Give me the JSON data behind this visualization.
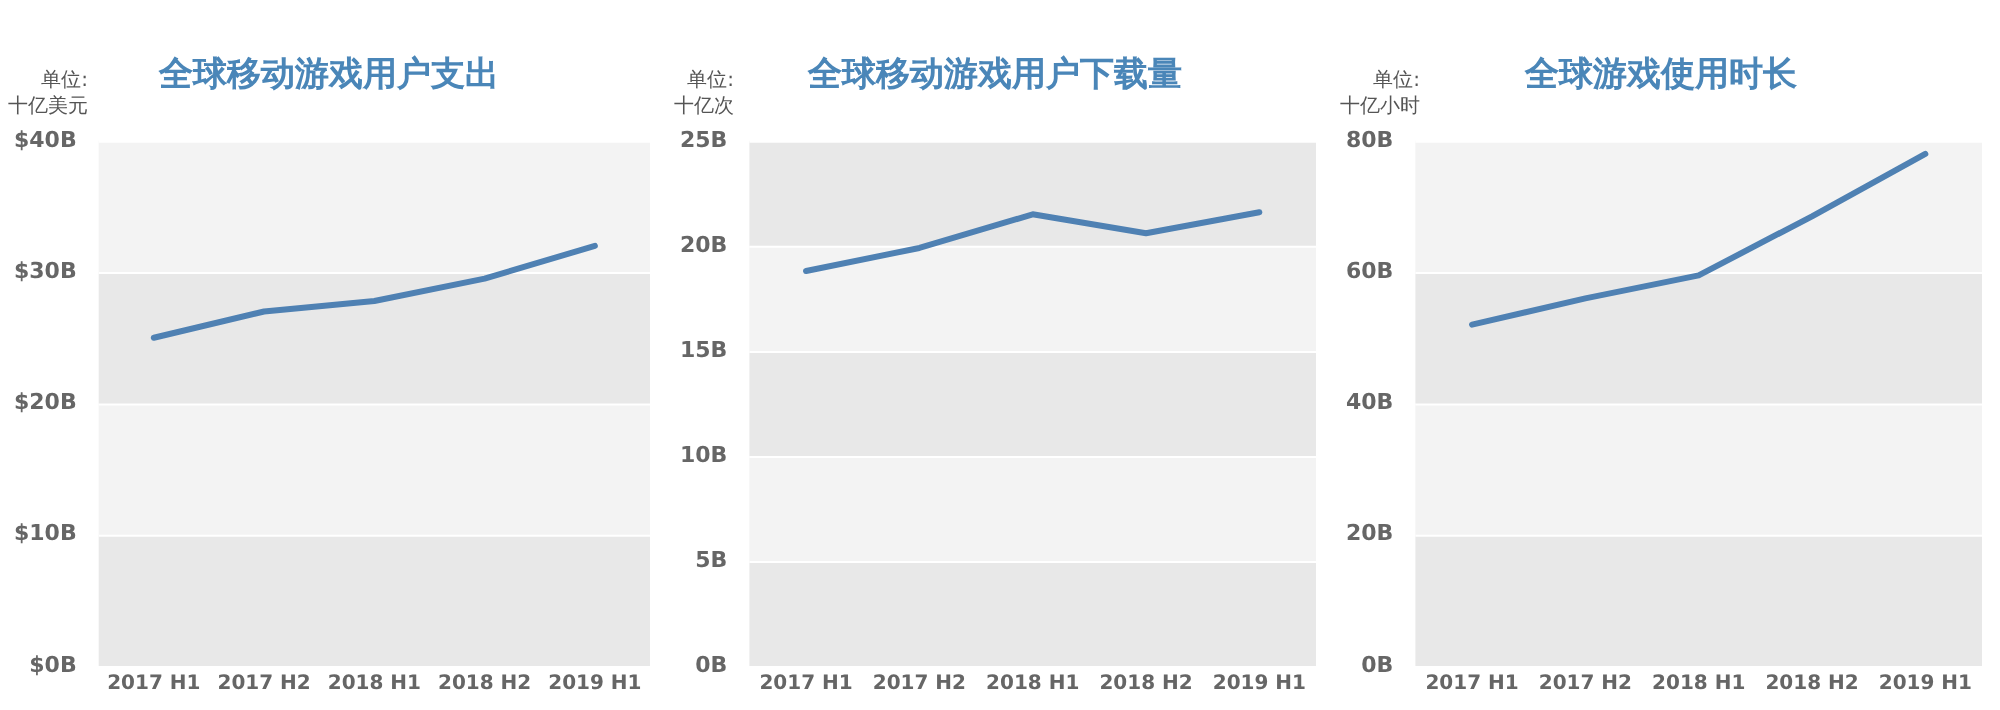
{
  "chart_data": [
    {
      "type": "line",
      "title": "全球移动游戏用户支出",
      "ylabel": "单位:\n十亿美元",
      "categories": [
        "2017 H1",
        "2017 H2",
        "2018 H1",
        "2018 H2",
        "2019 H1"
      ],
      "series": [
        {
          "color": "#4f81b3",
          "values": [
            25,
            27,
            27.8,
            29.5,
            32
          ]
        }
      ],
      "ylim": [
        0,
        40
      ],
      "yticks": [
        {
          "value": 0,
          "label": "$0B"
        },
        {
          "value": 10,
          "label": "$10B"
        },
        {
          "value": 20,
          "label": "$20B"
        },
        {
          "value": 30,
          "label": "$30B"
        },
        {
          "value": 40,
          "label": "$40B"
        }
      ],
      "grid": "y",
      "legend": false,
      "marker": "none"
    },
    {
      "type": "line",
      "title": "全球移动游戏用户下载量",
      "ylabel": "单位:\n十亿次",
      "categories": [
        "2017 H1",
        "2017 H2",
        "2018 H1",
        "2018 H2",
        "2019 H1"
      ],
      "series": [
        {
          "color": "#4f81b3",
          "values": [
            18.8,
            19.9,
            21.5,
            20.6,
            21.6
          ]
        }
      ],
      "ylim": [
        0,
        25
      ],
      "yticks": [
        {
          "value": 0,
          "label": "0B"
        },
        {
          "value": 5,
          "label": "5B"
        },
        {
          "value": 10,
          "label": "10B"
        },
        {
          "value": 15,
          "label": "15B"
        },
        {
          "value": 20,
          "label": "20B"
        },
        {
          "value": 25,
          "label": "25B"
        }
      ],
      "grid": "y",
      "legend": false,
      "marker": "none"
    },
    {
      "type": "line",
      "title": "全球游戏使用时长",
      "ylabel": "单位:\n十亿小时",
      "categories": [
        "2017 H1",
        "2017 H2",
        "2018 H1",
        "2018 H2",
        "2019 H1"
      ],
      "series": [
        {
          "color": "#4f81b3",
          "values": [
            52,
            56,
            59.5,
            68.5,
            78
          ]
        }
      ],
      "ylim": [
        0,
        80
      ],
      "yticks": [
        {
          "value": 0,
          "label": "0B"
        },
        {
          "value": 20,
          "label": "20B"
        },
        {
          "value": 40,
          "label": "40B"
        },
        {
          "value": 60,
          "label": "60B"
        },
        {
          "value": 80,
          "label": "80B"
        }
      ],
      "grid": "y",
      "legend": false,
      "marker": "none"
    }
  ]
}
